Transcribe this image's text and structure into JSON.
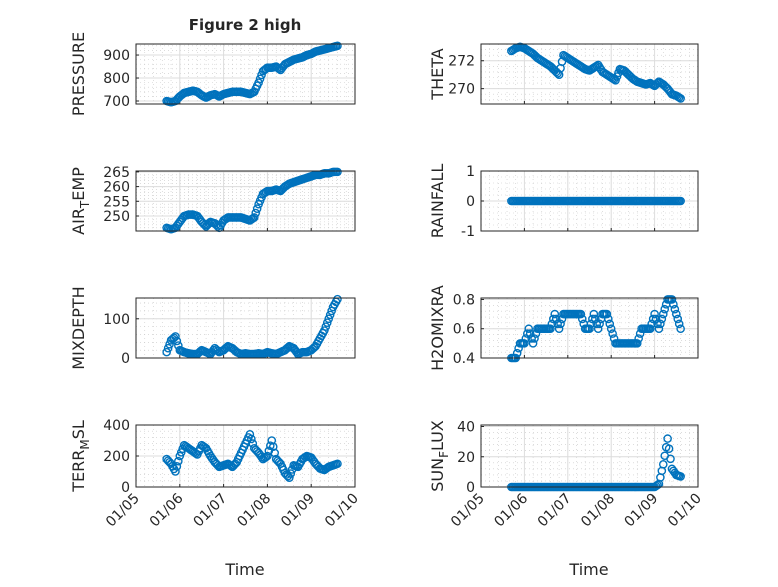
{
  "figure_title": "Figure 2 high",
  "chart_data": [
    {
      "type": "scatter",
      "id": "pressure",
      "ylabel": "PRESSURE",
      "ylim": [
        687,
        948
      ],
      "yticks": [
        700,
        800,
        900
      ],
      "xlim": [
        5,
        10
      ],
      "x_start": 5.7,
      "x_step": 0.1,
      "values": [
        700,
        695,
        700,
        720,
        735,
        740,
        745,
        740,
        725,
        715,
        725,
        730,
        720,
        730,
        735,
        740,
        740,
        740,
        735,
        730,
        740,
        780,
        830,
        845,
        845,
        850,
        835,
        860,
        870,
        880,
        885,
        890,
        900,
        905,
        915,
        920,
        925,
        930,
        935,
        940
      ]
    },
    {
      "type": "scatter",
      "id": "theta",
      "ylabel": "THETA",
      "ylim": [
        268.9,
        273.2
      ],
      "yticks": [
        270,
        272
      ],
      "xlim": [
        5,
        10
      ],
      "x_start": 5.7,
      "x_step": 0.1,
      "values": [
        272.7,
        272.9,
        273,
        272.9,
        272.7,
        272.5,
        272.2,
        272,
        271.8,
        271.6,
        271.3,
        271,
        272.4,
        272.2,
        272,
        271.8,
        271.6,
        271.4,
        271.3,
        271.5,
        271.7,
        271.2,
        271,
        270.8,
        270.6,
        271.4,
        271.3,
        271,
        270.7,
        270.5,
        270.4,
        270.3,
        270.4,
        270.2,
        270.5,
        270.3,
        270,
        269.6,
        269.5,
        269.3
      ]
    },
    {
      "type": "scatter",
      "id": "air-temp",
      "ylabel": "AIR_TEMP",
      "ylim": [
        244.9,
        265.3
      ],
      "yticks": [
        250,
        255,
        260,
        265
      ],
      "xlim": [
        5,
        10
      ],
      "x_start": 5.7,
      "x_step": 0.1,
      "values": [
        246,
        245.5,
        246,
        248,
        250,
        250.5,
        250.5,
        250,
        248,
        246.5,
        248,
        247.5,
        246,
        248.5,
        249.5,
        249.5,
        249.5,
        249.5,
        249,
        248.5,
        249.5,
        254,
        257.5,
        258.5,
        258.5,
        259,
        258.5,
        260,
        261,
        261.5,
        262,
        262.5,
        263,
        263.5,
        264,
        264,
        264.5,
        264.5,
        265,
        265
      ]
    },
    {
      "type": "scatter",
      "id": "rainfall",
      "ylabel": "RAINFALL",
      "ylim": [
        -1,
        1
      ],
      "yticks": [
        -1,
        0,
        1
      ],
      "xlim": [
        5,
        10
      ],
      "x_start": 5.7,
      "x_step": 0.1,
      "values": [
        0,
        0,
        0,
        0,
        0,
        0,
        0,
        0,
        0,
        0,
        0,
        0,
        0,
        0,
        0,
        0,
        0,
        0,
        0,
        0,
        0,
        0,
        0,
        0,
        0,
        0,
        0,
        0,
        0,
        0,
        0,
        0,
        0,
        0,
        0,
        0,
        0,
        0,
        0,
        0
      ]
    },
    {
      "type": "scatter",
      "id": "mixdepth",
      "ylabel": "MIXDEPTH",
      "ylim": [
        0,
        153
      ],
      "yticks": [
        0,
        100
      ],
      "xlim": [
        5,
        10
      ],
      "x_start": 5.7,
      "x_step": 0.1,
      "values": [
        15,
        45,
        55,
        20,
        15,
        12,
        10,
        10,
        20,
        15,
        10,
        25,
        15,
        20,
        30,
        25,
        15,
        10,
        12,
        10,
        10,
        12,
        10,
        15,
        12,
        10,
        15,
        20,
        30,
        25,
        10,
        15,
        15,
        20,
        30,
        50,
        70,
        100,
        130,
        150
      ]
    },
    {
      "type": "scatter",
      "id": "h2omixra",
      "ylabel": "H2OMIXRA",
      "ylim": [
        0.4,
        0.81
      ],
      "yticks": [
        0.4,
        0.6,
        0.8
      ],
      "xlim": [
        5,
        10
      ],
      "x_start": 5.7,
      "x_step": 0.1,
      "values": [
        0.4,
        0.4,
        0.5,
        0.5,
        0.6,
        0.5,
        0.6,
        0.6,
        0.6,
        0.6,
        0.7,
        0.6,
        0.7,
        0.7,
        0.7,
        0.7,
        0.7,
        0.6,
        0.6,
        0.7,
        0.6,
        0.7,
        0.7,
        0.6,
        0.5,
        0.5,
        0.5,
        0.5,
        0.5,
        0.5,
        0.6,
        0.6,
        0.6,
        0.7,
        0.6,
        0.7,
        0.8,
        0.8,
        0.7,
        0.6
      ]
    },
    {
      "type": "scatter",
      "id": "terr-msl",
      "ylabel": "TERR_MSL",
      "ylim": [
        0,
        400
      ],
      "yticks": [
        0,
        200,
        400
      ],
      "xlim": [
        5,
        10
      ],
      "x_start": 5.7,
      "x_step": 0.1,
      "values": [
        180,
        150,
        100,
        200,
        270,
        250,
        230,
        210,
        270,
        250,
        200,
        160,
        130,
        140,
        150,
        130,
        160,
        220,
        280,
        340,
        250,
        220,
        180,
        200,
        300,
        180,
        150,
        90,
        60,
        140,
        130,
        180,
        200,
        190,
        150,
        120,
        110,
        130,
        140,
        150
      ]
    },
    {
      "type": "scatter",
      "id": "sun-flux",
      "ylabel": "SUN_FLUX",
      "ylim": [
        0,
        41
      ],
      "yticks": [
        0,
        20,
        40
      ],
      "xlim": [
        5,
        10
      ],
      "x_start": 5.7,
      "x_step": 0.1,
      "values": [
        0,
        0,
        0,
        0,
        0,
        0,
        0,
        0,
        0,
        0,
        0,
        0,
        0,
        0,
        0,
        0,
        0,
        0,
        0,
        0,
        0,
        0,
        0,
        0,
        0,
        0,
        0,
        0,
        0,
        0,
        0,
        0,
        0,
        0,
        2,
        15,
        32,
        12,
        8,
        7
      ]
    }
  ],
  "x_ticks": [
    5,
    6,
    7,
    8,
    9,
    10
  ],
  "x_tick_labels": [
    "01/05",
    "01/06",
    "01/07",
    "01/08",
    "01/09",
    "01/10"
  ],
  "xlabel": "Time",
  "marker_color": "#0072BD"
}
